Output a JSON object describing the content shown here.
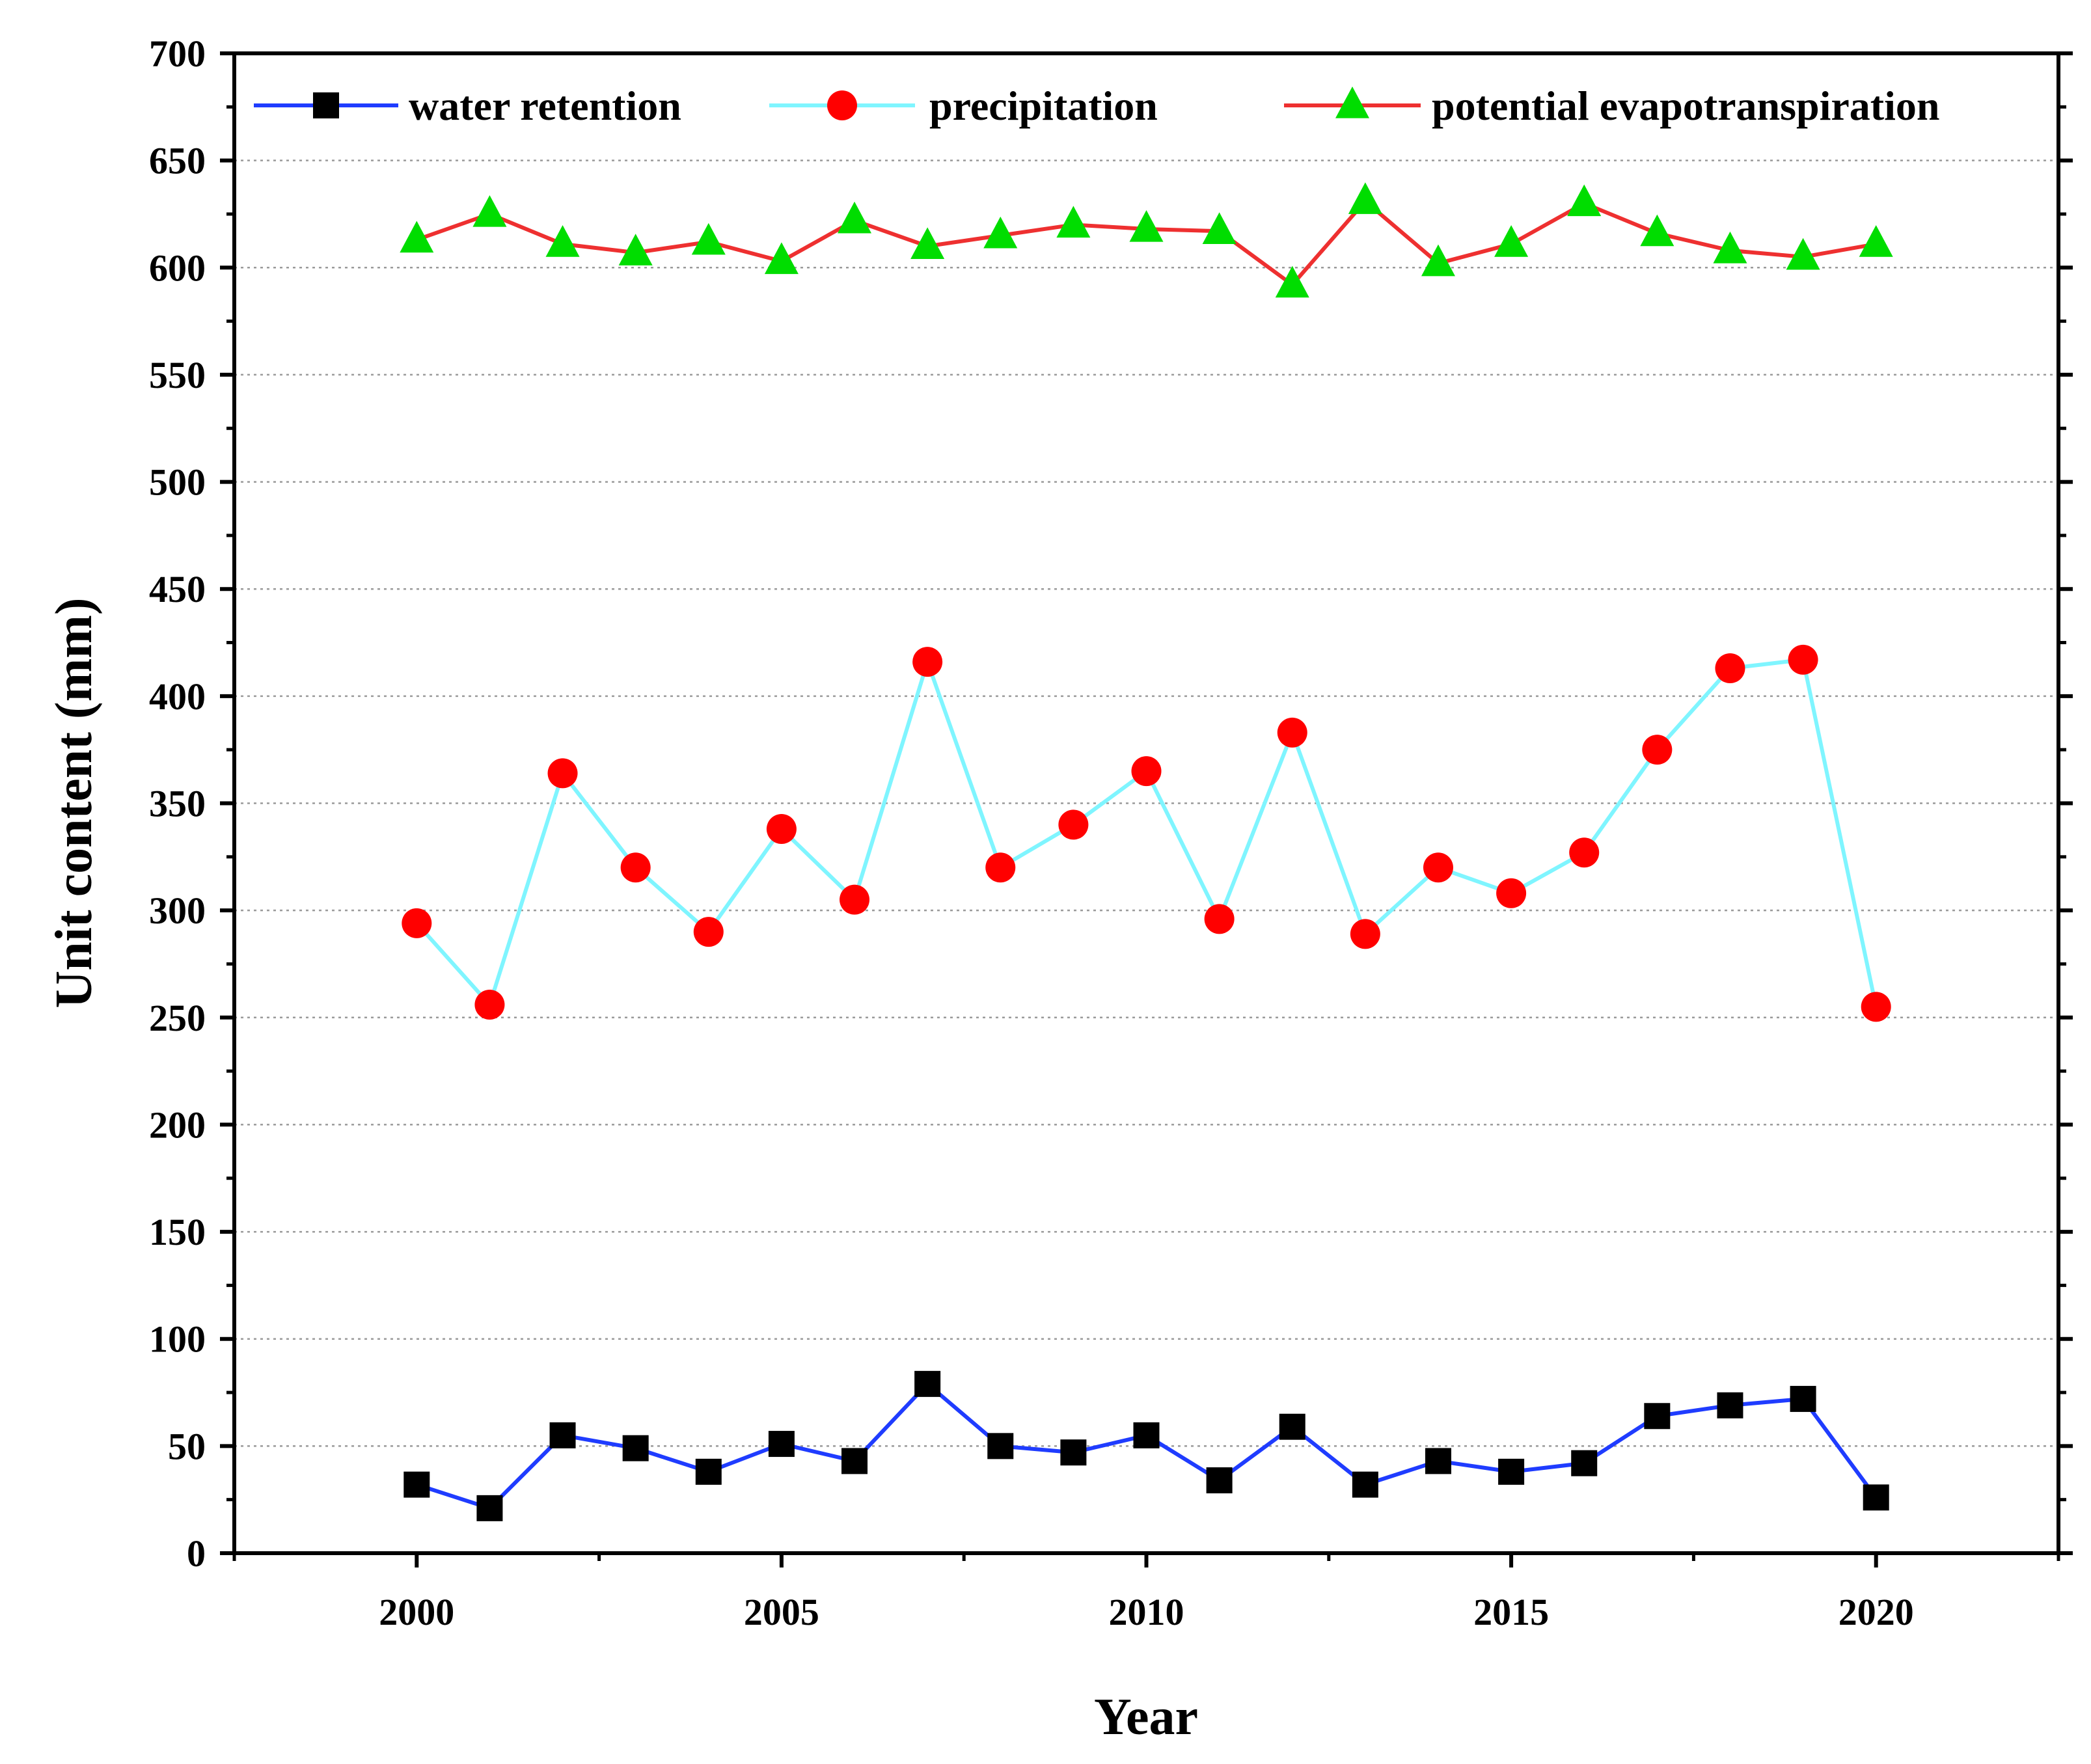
{
  "chart_data": {
    "type": "line",
    "title": "",
    "xlabel": "Year",
    "ylabel": "Unit content (mm)",
    "xlim": [
      1997.5,
      2022.5
    ],
    "ylim": [
      0,
      700
    ],
    "x_ticks": [
      2000,
      2005,
      2010,
      2015,
      2020
    ],
    "y_ticks": [
      0,
      50,
      100,
      150,
      200,
      250,
      300,
      350,
      400,
      450,
      500,
      550,
      600,
      650,
      700
    ],
    "grid": "horizontal dotted",
    "legend_position": "top",
    "x": [
      2000,
      2001,
      2002,
      2003,
      2004,
      2005,
      2006,
      2007,
      2008,
      2009,
      2010,
      2011,
      2012,
      2013,
      2014,
      2015,
      2016,
      2017,
      2018,
      2019,
      2020
    ],
    "series": [
      {
        "name": "water retention",
        "marker": "square",
        "line_color": "#1f3cff",
        "marker_color": "#000000",
        "values": [
          32,
          21,
          55,
          49,
          38,
          51,
          43,
          79,
          50,
          47,
          55,
          34,
          59,
          32,
          43,
          38,
          42,
          64,
          69,
          72,
          26
        ]
      },
      {
        "name": "precipitation",
        "marker": "circle",
        "line_color": "#7ff5ff",
        "marker_color": "#ff0000",
        "values": [
          294,
          256,
          364,
          320,
          290,
          338,
          305,
          416,
          320,
          340,
          365,
          296,
          383,
          289,
          320,
          308,
          327,
          375,
          413,
          417,
          255
        ]
      },
      {
        "name": "potential evapotranspiration",
        "marker": "triangle",
        "line_color": "#ee3030",
        "marker_color": "#00dd00",
        "values": [
          613,
          625,
          611,
          607,
          612,
          603,
          622,
          610,
          615,
          620,
          618,
          617,
          592,
          631,
          602,
          611,
          630,
          616,
          608,
          605,
          611
        ]
      }
    ]
  }
}
